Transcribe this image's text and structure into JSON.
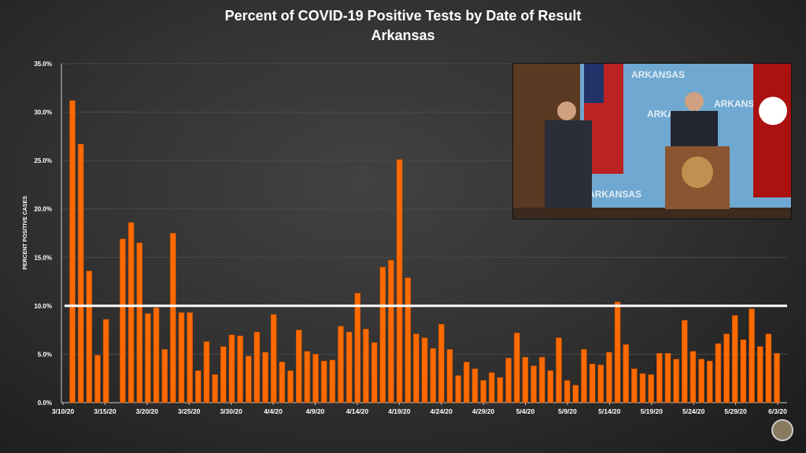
{
  "chart_data": {
    "type": "bar",
    "title": "Percent of COVID-19 Positive Tests by Date of Result",
    "subtitle": "Arkansas",
    "xlabel": "",
    "ylabel": "PERCENT POSITIVE CASES",
    "ylim": [
      0,
      35
    ],
    "yticks": [
      "0.0%",
      "5.0%",
      "10.0%",
      "15.0%",
      "20.0%",
      "25.0%",
      "30.0%",
      "35.0%"
    ],
    "xtick_labels": [
      "3/10/20",
      "3/15/20",
      "3/20/20",
      "3/25/20",
      "3/30/20",
      "4/4/20",
      "4/9/20",
      "4/14/20",
      "4/19/20",
      "4/24/20",
      "4/29/20",
      "5/4/20",
      "5/9/20",
      "5/14/20",
      "5/19/20",
      "5/24/20",
      "5/29/20",
      "6/3/20"
    ],
    "threshold": 10,
    "bar_color": "#ff6a00",
    "values": [
      31.2,
      26.7,
      13.6,
      4.9,
      8.6,
      0,
      16.9,
      18.6,
      16.5,
      9.2,
      9.8,
      5.5,
      17.5,
      9.3,
      9.3,
      3.3,
      6.3,
      2.9,
      5.8,
      7.0,
      6.9,
      4.8,
      7.3,
      5.2,
      9.1,
      4.2,
      3.3,
      7.5,
      5.3,
      5.0,
      4.3,
      4.4,
      7.9,
      7.3,
      11.3,
      7.6,
      6.2,
      14.0,
      14.7,
      25.1,
      12.9,
      7.1,
      6.7,
      5.6,
      8.1,
      5.5,
      2.8,
      4.2,
      3.5,
      2.3,
      3.1,
      2.6,
      4.6,
      7.2,
      4.7,
      3.8,
      4.7,
      3.3,
      6.7,
      2.3,
      1.8,
      5.5,
      4.0,
      3.9,
      5.2,
      10.4,
      6.0,
      3.5,
      3.0,
      2.9,
      5.1,
      5.1,
      4.5,
      8.5,
      5.3,
      4.5,
      4.3,
      6.1,
      7.1,
      9.0,
      6.5,
      9.7,
      5.8,
      7.1,
      5.1
    ]
  },
  "video_inset": {
    "backdrop_text": "ARKANSAS"
  }
}
